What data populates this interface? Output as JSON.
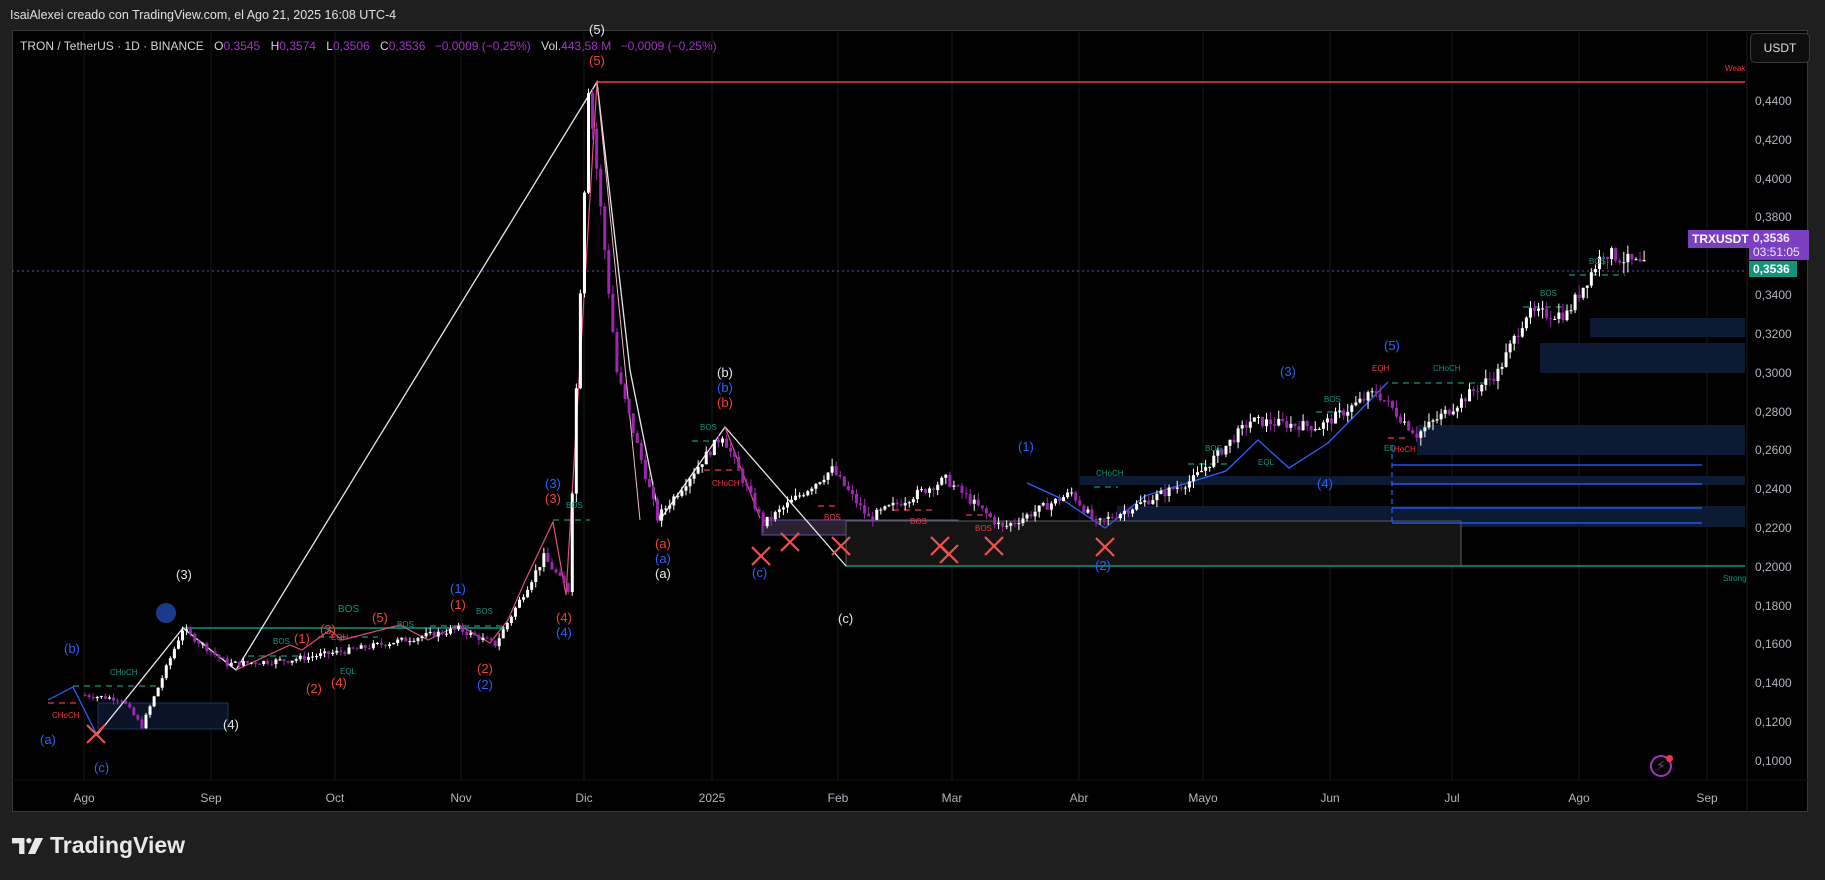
{
  "credit": "IsaiAlexei creado con TradingView.com, el Ago 21, 2025 16:08 UTC-4",
  "legend": {
    "symbol": "TRON / TetherUS · 1D · BINANCE",
    "open_label": "O",
    "open": "0,3545",
    "high_label": "H",
    "high": "0,3574",
    "low_label": "L",
    "low": "0,3506",
    "close_label": "C",
    "close": "0,3536",
    "change": "−0,0009 (−0,25%)",
    "vol_label": "Vol.",
    "vol": "443,58 M",
    "vol_change": "−0,0009 (−0,25%)"
  },
  "currency_button": "USDT",
  "price_axis": {
    "ticks": [
      "0,4400",
      "0,4200",
      "0,4000",
      "0,3800",
      "0,3400",
      "0,3200",
      "0,3000",
      "0,2800",
      "0,2600",
      "0,2400",
      "0,2200",
      "0,2000",
      "0,1800",
      "0,1600",
      "0,1400",
      "0,1200",
      "0,1000"
    ]
  },
  "price_tags": {
    "symbol": "TRXUSDT",
    "price": "0,3536",
    "countdown": "03:51:05",
    "last": "0,3536"
  },
  "time_axis": {
    "ticks": [
      "Ago",
      "Sep",
      "Oct",
      "Nov",
      "Dic",
      "2025",
      "Feb",
      "Mar",
      "Abr",
      "Mayo",
      "Jun",
      "Jul",
      "Ago",
      "Sep"
    ]
  },
  "level_labels": {
    "weak_high": "Weak",
    "strong_low": "Strong"
  },
  "annotations": {
    "wave_labels": [
      "(a)",
      "(b)",
      "(c)",
      "(2)",
      "(3)",
      "(4)",
      "(1)",
      "(2)",
      "(3)",
      "(4)",
      "(5)",
      "(1)",
      "(2)",
      "(3)",
      "(4)",
      "(5)",
      "(a)",
      "(b)",
      "(c)",
      "(1)",
      "(2)",
      "(3)",
      "(4)",
      "(5)"
    ],
    "smc_labels": [
      "BOS",
      "CHoCH",
      "EQH",
      "EQL"
    ]
  },
  "logo": "TradingView",
  "colors": {
    "bull_candle": "#ffffff",
    "bear_candle": "#9c27b0",
    "bos": "#089981",
    "choch_bear": "#f23645",
    "wave_blue": "#2962ff",
    "wave_red": "#f44336",
    "accent_purple": "#7b3fc2",
    "last_price_green": "#12937a"
  },
  "chart_data": {
    "type": "candlestick",
    "title": "TRON / TetherUS · 1D · BINANCE",
    "ylabel": "USDT",
    "ylim": [
      0.09,
      0.455
    ],
    "x_ticks": [
      "Ago 2024",
      "Sep",
      "Oct",
      "Nov",
      "Dic",
      "2025",
      "Feb",
      "Mar",
      "Abr",
      "Mayo",
      "Jun",
      "Jul",
      "Ago",
      "Sep"
    ],
    "approx_close_path": [
      {
        "t": "2024-08-01",
        "p": 0.134
      },
      {
        "t": "2024-08-10",
        "p": 0.132
      },
      {
        "t": "2024-08-15",
        "p": 0.118
      },
      {
        "t": "2024-08-25",
        "p": 0.168
      },
      {
        "t": "2024-09-05",
        "p": 0.15
      },
      {
        "t": "2024-09-20",
        "p": 0.152
      },
      {
        "t": "2024-10-05",
        "p": 0.157
      },
      {
        "t": "2024-10-20",
        "p": 0.163
      },
      {
        "t": "2024-11-01",
        "p": 0.168
      },
      {
        "t": "2024-11-10",
        "p": 0.16
      },
      {
        "t": "2024-11-22",
        "p": 0.205
      },
      {
        "t": "2024-11-28",
        "p": 0.188
      },
      {
        "t": "2024-12-03",
        "p": 0.447
      },
      {
        "t": "2024-12-10",
        "p": 0.3
      },
      {
        "t": "2024-12-20",
        "p": 0.225
      },
      {
        "t": "2025-01-05",
        "p": 0.268
      },
      {
        "t": "2025-01-15",
        "p": 0.222
      },
      {
        "t": "2025-02-01",
        "p": 0.25
      },
      {
        "t": "2025-02-10",
        "p": 0.225
      },
      {
        "t": "2025-03-01",
        "p": 0.245
      },
      {
        "t": "2025-03-15",
        "p": 0.22
      },
      {
        "t": "2025-04-01",
        "p": 0.238
      },
      {
        "t": "2025-04-07",
        "p": 0.222
      },
      {
        "t": "2025-05-01",
        "p": 0.245
      },
      {
        "t": "2025-05-15",
        "p": 0.275
      },
      {
        "t": "2025-06-01",
        "p": 0.272
      },
      {
        "t": "2025-06-15",
        "p": 0.29
      },
      {
        "t": "2025-06-25",
        "p": 0.268
      },
      {
        "t": "2025-07-15",
        "p": 0.3
      },
      {
        "t": "2025-07-22",
        "p": 0.33
      },
      {
        "t": "2025-08-01",
        "p": 0.33
      },
      {
        "t": "2025-08-10",
        "p": 0.362
      },
      {
        "t": "2025-08-21",
        "p": 0.3536
      }
    ],
    "last_ohlc": {
      "open": 0.3545,
      "high": 0.3574,
      "low": 0.3506,
      "close": 0.3536
    },
    "levels": [
      {
        "name": "Weak High",
        "price": 0.447,
        "color": "#f23645"
      },
      {
        "name": "Strong Low",
        "price": 0.2005,
        "color": "#089981"
      },
      {
        "name": "Last price",
        "price": 0.3536,
        "color": "#7b3fc2"
      }
    ],
    "grid": true,
    "legend_position": "top-left"
  }
}
